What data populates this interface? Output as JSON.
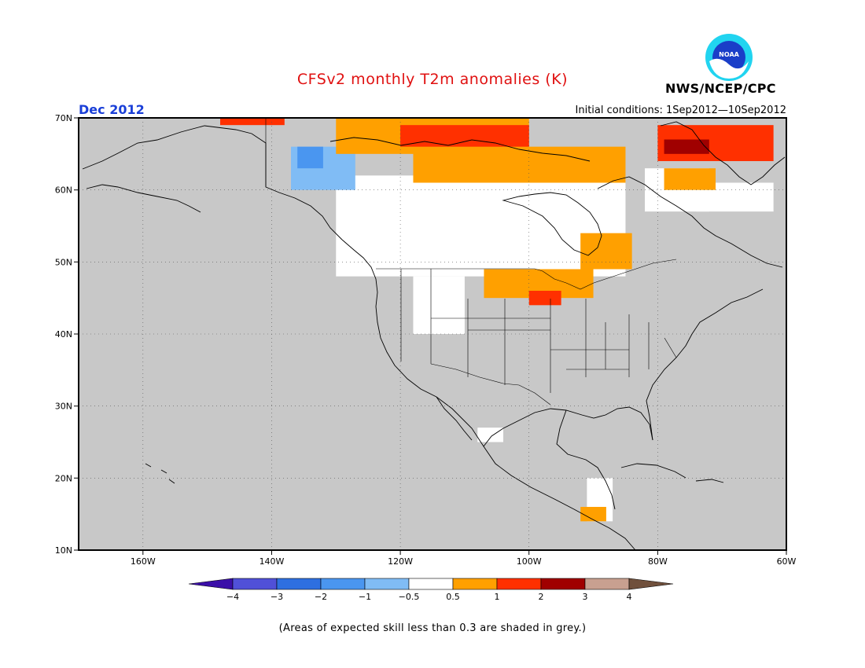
{
  "title": "CFSv2 monthly T2m anomalies (K)",
  "agency": "NWS/NCEP/CPC",
  "logo_text": "NOAA",
  "month": "Dec 2012",
  "initial_conditions": "Initial conditions: 1Sep2012—10Sep2012",
  "footnote": "(Areas of expected skill less than 0.3 are shaded in grey.)",
  "map": {
    "lon_range": [
      -170,
      -60
    ],
    "lat_range": [
      10,
      70
    ],
    "lon_ticks": [
      "160W",
      "140W",
      "120W",
      "100W",
      "80W",
      "60W"
    ],
    "lat_ticks": [
      "70N",
      "60N",
      "50N",
      "40N",
      "30N",
      "20N",
      "10N"
    ],
    "grid": "dotted",
    "background_color": "#c8c8c8"
  },
  "colorbar": {
    "labels": [
      "−4",
      "−3",
      "−2",
      "−1",
      "−0.5",
      "0.5",
      "1",
      "2",
      "3",
      "4"
    ],
    "colors": [
      "#3b0fa8",
      "#5050d8",
      "#2e6fe0",
      "#4a96f0",
      "#80bcf5",
      "#ffffff",
      "#ffa000",
      "#ff3000",
      "#a00000",
      "#c8a090",
      "#70503c"
    ]
  },
  "anomaly_regions": [
    {
      "color": "#ffffff",
      "lon": [
        -130,
        -85
      ],
      "lat": [
        48,
        62
      ],
      "category": "-0.5 to 0.5"
    },
    {
      "color": "#ffffff",
      "lon": [
        -118,
        -110
      ],
      "lat": [
        40,
        48
      ],
      "category": "-0.5 to 0.5"
    },
    {
      "color": "#ffffff",
      "lon": [
        -82,
        -72
      ],
      "lat": [
        57,
        63
      ],
      "category": "-0.5 to 0.5"
    },
    {
      "color": "#ffffff",
      "lon": [
        -74,
        -62
      ],
      "lat": [
        57,
        61
      ],
      "category": "-0.5 to 0.5"
    },
    {
      "color": "#ffffff",
      "lon": [
        -108,
        -104
      ],
      "lat": [
        25,
        27
      ],
      "category": "-0.5 to 0.5"
    },
    {
      "color": "#ffffff",
      "lon": [
        -91,
        -87
      ],
      "lat": [
        14,
        20
      ],
      "category": "-0.5 to 0.5"
    },
    {
      "color": "#80bcf5",
      "lon": [
        -137,
        -127
      ],
      "lat": [
        60,
        66
      ],
      "category": "-1 to -0.5"
    },
    {
      "color": "#4a96f0",
      "lon": [
        -136,
        -132
      ],
      "lat": [
        63,
        66
      ],
      "category": "-2 to -1"
    },
    {
      "color": "#ffa000",
      "lon": [
        -130,
        -100
      ],
      "lat": [
        65,
        70
      ],
      "category": "0.5 to 1"
    },
    {
      "color": "#ffa000",
      "lon": [
        -118,
        -85
      ],
      "lat": [
        61,
        66
      ],
      "category": "0.5 to 1"
    },
    {
      "color": "#ffa000",
      "lon": [
        -92,
        -84
      ],
      "lat": [
        49,
        54
      ],
      "category": "0.5 to 1"
    },
    {
      "color": "#ffa000",
      "lon": [
        -107,
        -90
      ],
      "lat": [
        45,
        49
      ],
      "category": "0.5 to 1"
    },
    {
      "color": "#ffa000",
      "lon": [
        -79,
        -71
      ],
      "lat": [
        60,
        63
      ],
      "category": "0.5 to 1"
    },
    {
      "color": "#ffa000",
      "lon": [
        -92,
        -88
      ],
      "lat": [
        14,
        16
      ],
      "category": "0.5 to 1"
    },
    {
      "color": "#ff3000",
      "lon": [
        -120,
        -100
      ],
      "lat": [
        66,
        69
      ],
      "category": "1 to 2"
    },
    {
      "color": "#ff3000",
      "lon": [
        -100,
        -95
      ],
      "lat": [
        44,
        46
      ],
      "category": "1 to 2"
    },
    {
      "color": "#ff3000",
      "lon": [
        -80,
        -62
      ],
      "lat": [
        64,
        69
      ],
      "category": "1 to 2"
    },
    {
      "color": "#ff3000",
      "lon": [
        -148,
        -138
      ],
      "lat": [
        69,
        70
      ],
      "category": "1 to 2"
    },
    {
      "color": "#a00000",
      "lon": [
        -79,
        -72
      ],
      "lat": [
        65,
        67
      ],
      "category": "2 to 3"
    }
  ]
}
